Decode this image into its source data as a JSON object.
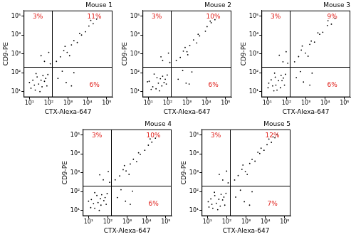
{
  "chart_data": [
    {
      "type": "scatter",
      "title": "Mouse 1",
      "x_label": "CTX-Alexa-647",
      "y_label": "CD9-PE",
      "log": true,
      "grid": false,
      "xlim": [
        5,
        200000
      ],
      "ylim": [
        5,
        200000
      ],
      "xticks": [
        {
          "value": 10,
          "label": "10¹"
        },
        {
          "value": 100,
          "label": "10²"
        },
        {
          "value": 1000,
          "label": "10³"
        },
        {
          "value": 10000,
          "label": "10⁴"
        },
        {
          "value": 100000,
          "label": "10⁵"
        }
      ],
      "yticks": [
        {
          "value": 10,
          "label": "10¹"
        },
        {
          "value": 100,
          "label": "10²"
        },
        {
          "value": 1000,
          "label": "10³"
        },
        {
          "value": 10000,
          "label": "10⁴"
        },
        {
          "value": 100000,
          "label": "10⁵"
        }
      ],
      "gates": {
        "x": 150,
        "y": 200
      },
      "series": [
        {
          "color": "#000000",
          "x": [
            12,
            20,
            30,
            15,
            45,
            60,
            25,
            80,
            10,
            35,
            50,
            18,
            70,
            40,
            22,
            90,
            250,
            400,
            600,
            900,
            1500,
            2000,
            3000,
            5000,
            8000,
            12000,
            20000,
            30000,
            1200,
            700,
            4000,
            15000,
            300,
            800,
            2000,
            500,
            1500,
            60,
            100,
            40,
            120
          ],
          "y": [
            15,
            12,
            25,
            40,
            18,
            35,
            60,
            20,
            30,
            10,
            70,
            22,
            50,
            40,
            90,
            80,
            400,
            700,
            1500,
            1200,
            3000,
            5000,
            4000,
            10000,
            15000,
            30000,
            40000,
            70000,
            800,
            2500,
            12000,
            60000,
            50,
            30,
            100,
            120,
            20,
            400,
            1200,
            800,
            300
          ]
        }
      ],
      "quadrants": [
        {
          "position": "upper left",
          "value": 3,
          "label": "3%",
          "color": "#e0201b"
        },
        {
          "position": "upper right",
          "value": 11,
          "label": "11%",
          "color": "#e0201b"
        },
        {
          "position": "lower right",
          "value": 6,
          "label": "6%",
          "color": "#e0201b"
        }
      ]
    },
    {
      "type": "scatter",
      "title": "Mouse 2",
      "x_label": "CTX-Alexa-647",
      "y_label": "CD9-PE",
      "log": true,
      "grid": false,
      "xlim": [
        5,
        200000
      ],
      "ylim": [
        5,
        200000
      ],
      "xticks": [
        {
          "value": 10,
          "label": "10¹"
        },
        {
          "value": 100,
          "label": "10²"
        },
        {
          "value": 1000,
          "label": "10³"
        },
        {
          "value": 10000,
          "label": "10⁴"
        },
        {
          "value": 100000,
          "label": "10⁵"
        }
      ],
      "yticks": [
        {
          "value": 10,
          "label": "10¹"
        },
        {
          "value": 100,
          "label": "10²"
        },
        {
          "value": 1000,
          "label": "10³"
        },
        {
          "value": 10000,
          "label": "10⁴"
        },
        {
          "value": 100000,
          "label": "10⁵"
        }
      ],
      "gates": {
        "x": 150,
        "y": 200
      },
      "series": [
        {
          "color": "#000000",
          "x": [
            14,
            25,
            33,
            11,
            50,
            65,
            28,
            85,
            9,
            38,
            55,
            17,
            75,
            42,
            20,
            95,
            280,
            450,
            650,
            1000,
            1400,
            2200,
            3200,
            4500,
            9000,
            11000,
            18000,
            28000,
            1100,
            800,
            3800,
            16000,
            350,
            900,
            1800,
            600,
            1300,
            55,
            110,
            45,
            130
          ],
          "y": [
            13,
            14,
            28,
            35,
            20,
            30,
            55,
            25,
            33,
            11,
            65,
            18,
            45,
            48,
            85,
            75,
            450,
            650,
            1400,
            1300,
            2800,
            5500,
            3800,
            9000,
            16000,
            28000,
            45000,
            65000,
            900,
            2200,
            11000,
            55000,
            45,
            28,
            110,
            130,
            25,
            450,
            1100,
            700,
            350
          ]
        }
      ],
      "quadrants": [
        {
          "position": "upper left",
          "value": 3,
          "label": "3%",
          "color": "#e0201b"
        },
        {
          "position": "upper right",
          "value": 10,
          "label": "10%",
          "color": "#e0201b"
        },
        {
          "position": "lower right",
          "value": 6,
          "label": "6%",
          "color": "#e0201b"
        }
      ]
    },
    {
      "type": "scatter",
      "title": "Mouse 3",
      "x_label": "CTX-Alexa-647",
      "y_label": "CD9-PE",
      "log": true,
      "grid": false,
      "xlim": [
        5,
        200000
      ],
      "ylim": [
        5,
        200000
      ],
      "xticks": [
        {
          "value": 10,
          "label": "10¹"
        },
        {
          "value": 100,
          "label": "10²"
        },
        {
          "value": 1000,
          "label": "10³"
        },
        {
          "value": 10000,
          "label": "10⁴"
        },
        {
          "value": 100000,
          "label": "10⁵"
        }
      ],
      "yticks": [
        {
          "value": 10,
          "label": "10¹"
        },
        {
          "value": 100,
          "label": "10²"
        },
        {
          "value": 1000,
          "label": "10³"
        },
        {
          "value": 10000,
          "label": "10⁴"
        },
        {
          "value": 100000,
          "label": "10⁵"
        }
      ],
      "gates": {
        "x": 150,
        "y": 200
      },
      "series": [
        {
          "color": "#000000",
          "x": [
            11,
            22,
            28,
            16,
            48,
            58,
            26,
            78,
            12,
            32,
            52,
            19,
            68,
            38,
            24,
            88,
            260,
            420,
            580,
            950,
            1600,
            1900,
            2800,
            5200,
            7500,
            13000,
            21000,
            32000,
            1300,
            650,
            4200,
            14000,
            320,
            750,
            2100,
            520,
            1600,
            65,
            95,
            42,
            115
          ],
          "y": [
            16,
            11,
            22,
            42,
            16,
            38,
            58,
            22,
            28,
            12,
            72,
            20,
            52,
            38,
            95,
            82,
            380,
            720,
            1600,
            1100,
            3200,
            4800,
            4200,
            11000,
            14000,
            32000,
            38000,
            75000,
            750,
            2600,
            13000,
            58000,
            55,
            32,
            95,
            115,
            22,
            380,
            1300,
            850,
            320
          ]
        }
      ],
      "quadrants": [
        {
          "position": "upper left",
          "value": 3,
          "label": "3%",
          "color": "#e0201b"
        },
        {
          "position": "upper right",
          "value": 9,
          "label": "9%",
          "color": "#e0201b"
        },
        {
          "position": "lower right",
          "value": 6,
          "label": "6%",
          "color": "#e0201b"
        }
      ]
    },
    {
      "type": "scatter",
      "title": "Mouse 4",
      "x_label": "CTX-Alexa-647",
      "y_label": "CD9-PE",
      "log": true,
      "grid": false,
      "xlim": [
        5,
        200000
      ],
      "ylim": [
        5,
        200000
      ],
      "xticks": [
        {
          "value": 10,
          "label": "10¹"
        },
        {
          "value": 100,
          "label": "10²"
        },
        {
          "value": 1000,
          "label": "10³"
        },
        {
          "value": 10000,
          "label": "10⁴"
        },
        {
          "value": 100000,
          "label": "10⁵"
        }
      ],
      "yticks": [
        {
          "value": 10,
          "label": "10¹"
        },
        {
          "value": 100,
          "label": "10²"
        },
        {
          "value": 1000,
          "label": "10³"
        },
        {
          "value": 10000,
          "label": "10⁴"
        },
        {
          "value": 100000,
          "label": "10⁵"
        }
      ],
      "gates": {
        "x": 150,
        "y": 200
      },
      "series": [
        {
          "color": "#000000",
          "x": [
            13,
            21,
            31,
            14,
            44,
            62,
            27,
            82,
            10,
            36,
            48,
            18,
            72,
            41,
            21,
            92,
            240,
            410,
            620,
            880,
            1450,
            2100,
            3100,
            4800,
            8200,
            12500,
            19000,
            29000,
            1250,
            720,
            3900,
            15500,
            310,
            820,
            1900,
            480,
            1450,
            58,
            105,
            38,
            125
          ],
          "y": [
            14,
            13,
            26,
            38,
            19,
            33,
            62,
            21,
            31,
            10,
            68,
            23,
            48,
            42,
            88,
            78,
            420,
            680,
            1450,
            1250,
            2900,
            5200,
            3900,
            9500,
            15500,
            29000,
            42000,
            68000,
            820,
            2400,
            11500,
            62000,
            48,
            31,
            105,
            125,
            21,
            420,
            1150,
            780,
            310
          ]
        }
      ],
      "quadrants": [
        {
          "position": "upper left",
          "value": 3,
          "label": "3%",
          "color": "#e0201b"
        },
        {
          "position": "upper right",
          "value": 10,
          "label": "10%",
          "color": "#e0201b"
        },
        {
          "position": "lower right",
          "value": 6,
          "label": "6%",
          "color": "#e0201b"
        }
      ]
    },
    {
      "type": "scatter",
      "title": "Mouse 5",
      "x_label": "CTX-Alexa-647",
      "y_label": "CD9-PE",
      "log": true,
      "grid": false,
      "xlim": [
        5,
        200000
      ],
      "ylim": [
        5,
        200000
      ],
      "xticks": [
        {
          "value": 10,
          "label": "10¹"
        },
        {
          "value": 100,
          "label": "10²"
        },
        {
          "value": 1000,
          "label": "10³"
        },
        {
          "value": 10000,
          "label": "10⁴"
        },
        {
          "value": 100000,
          "label": "10⁵"
        }
      ],
      "yticks": [
        {
          "value": 10,
          "label": "10¹"
        },
        {
          "value": 100,
          "label": "10²"
        },
        {
          "value": 1000,
          "label": "10³"
        },
        {
          "value": 10000,
          "label": "10⁴"
        },
        {
          "value": 100000,
          "label": "10⁵"
        }
      ],
      "gates": {
        "x": 150,
        "y": 200
      },
      "series": [
        {
          "color": "#000000",
          "x": [
            12,
            19,
            29,
            15,
            46,
            61,
            24,
            79,
            11,
            34,
            51,
            17,
            71,
            39,
            23,
            91,
            255,
            390,
            610,
            920,
            1550,
            2050,
            2900,
            5100,
            8500,
            12200,
            20500,
            31000,
            1150,
            690,
            4100,
            15200,
            290,
            810,
            2050,
            510,
            1520,
            62,
            98,
            41,
            118,
            6000,
            25000,
            40000
          ],
          "y": [
            15,
            13,
            24,
            41,
            17,
            36,
            61,
            19,
            29,
            11,
            71,
            21,
            51,
            39,
            91,
            81,
            410,
            710,
            1520,
            1150,
            3100,
            5100,
            4100,
            10500,
            15500,
            31000,
            41000,
            72000,
            810,
            2550,
            12200,
            61000,
            51,
            29,
            98,
            118,
            19,
            410,
            1220,
            810,
            290,
            20000,
            80000,
            110000
          ]
        }
      ],
      "quadrants": [
        {
          "position": "upper left",
          "value": 3,
          "label": "3%",
          "color": "#e0201b"
        },
        {
          "position": "upper right",
          "value": 12,
          "label": "12%",
          "color": "#e0201b"
        },
        {
          "position": "lower right",
          "value": 7,
          "label": "7%",
          "color": "#e0201b"
        }
      ]
    }
  ]
}
